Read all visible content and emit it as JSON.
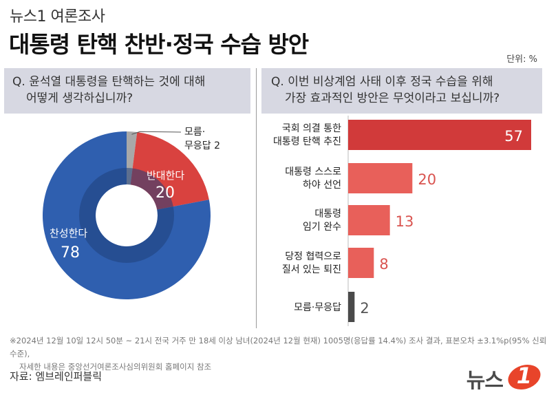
{
  "header": {
    "brand": "뉴스1 여론조사",
    "title": "대통령 탄핵 찬반·정국 수습 방안",
    "unit": "단위: %"
  },
  "questions": {
    "q1": {
      "line1": "Q. 윤석열 대통령을 탄핵하는 것에 대해",
      "line2": "어떻게 생각하십니까?"
    },
    "q2": {
      "line1": "Q. 이번 비상계엄 사태 이후 정국 수습을 위해",
      "line2": "가장 효과적인 방안은 무엇이라고 보십니까?"
    }
  },
  "chart_data": [
    {
      "type": "pie",
      "slices": [
        {
          "label": "찬성한다",
          "value": 78,
          "color": "#2f5faf"
        },
        {
          "label": "반대한다",
          "value": 20,
          "color": "#d9423f"
        },
        {
          "label_lines": [
            "모름·",
            "무응답 2"
          ],
          "value": 2,
          "color": "#a8a8a8"
        }
      ]
    },
    {
      "type": "bar",
      "orientation": "horizontal",
      "categories": [
        [
          "국회 의결 통한",
          "대통령 탄핵 추진"
        ],
        [
          "대통령 스스로",
          "하야 선언"
        ],
        [
          "대통령",
          "임기 완수"
        ],
        [
          "당정 협력으로",
          "질서 있는 퇴진"
        ],
        [
          "모름·무응답"
        ]
      ],
      "values": [
        57,
        20,
        13,
        8,
        2
      ],
      "colors": [
        "#d13a3a",
        "#e8605a",
        "#e8605a",
        "#e8605a",
        "#4a4a4a"
      ],
      "value_colors": [
        "#ffffff",
        "#d9534f",
        "#d9534f",
        "#d9534f",
        "#555555"
      ]
    }
  ],
  "footer": {
    "note_line1": "※2024년 12월 10일 12시 50분 ~ 21시 전국 거주 만 18세 이상 남녀(2024년 12월 현재) 1005명(응답률 14.4%) 조사 결과, 표본오차 ±3.1%p(95% 신뢰수준),",
    "note_line2": "자세한 내용은 중앙선거여론조사심의위원회 홈페이지 참조",
    "source": "자료: 엠브레인퍼블릭",
    "logo_text": "뉴스",
    "logo_mark": "1"
  }
}
